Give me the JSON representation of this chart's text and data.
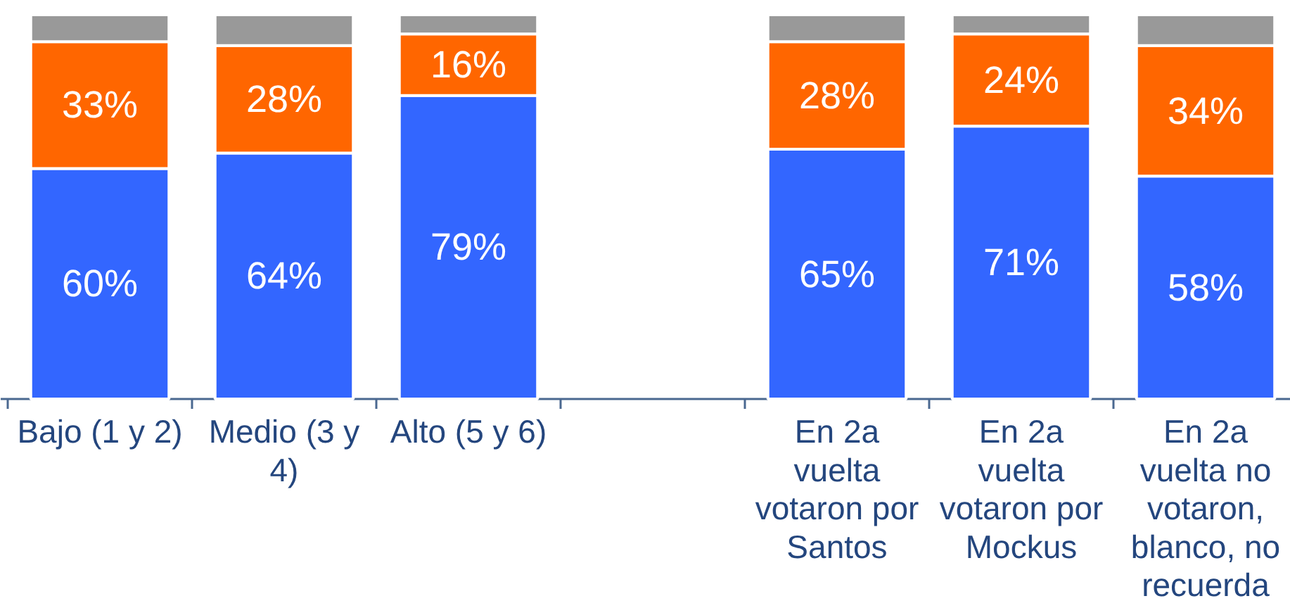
{
  "chart_data": {
    "type": "bar",
    "stacked": true,
    "categories": [
      "Bajo (1 y 2)",
      "Medio (3 y 4)",
      "Alto (5 y 6)",
      null,
      "En 2a vuelta votaron por Santos",
      "En 2a vuelta votaron por Mockus",
      "En 2a vuelta no votaron, blanco, no recuerda"
    ],
    "series": [
      {
        "color": "#3366ff",
        "values": [
          60,
          64,
          79,
          null,
          65,
          71,
          58
        ],
        "value_labels": [
          "60%",
          "64%",
          "79%",
          null,
          "65%",
          "71%",
          "58%"
        ]
      },
      {
        "color": "#ff6600",
        "values": [
          33,
          28,
          16,
          null,
          28,
          24,
          34
        ],
        "value_labels": [
          "33%",
          "28%",
          "16%",
          null,
          "28%",
          "24%",
          "34%"
        ]
      },
      {
        "color": "#999999",
        "values": [
          7,
          8,
          5,
          null,
          7,
          5,
          8
        ]
      }
    ]
  }
}
